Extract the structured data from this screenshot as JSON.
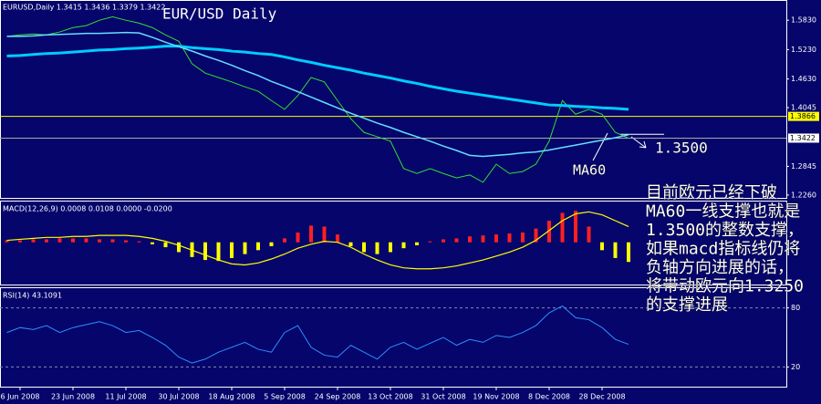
{
  "chart_data": [
    {
      "type": "line",
      "title": "EUR/USD Daily",
      "subtitle": "EURUSD,Daily  1.3415 1.3436 1.3379 1.3422",
      "categories": [
        null,
        "6 Jun 2008",
        null,
        null,
        null,
        "23 Jun 2008",
        null,
        null,
        null,
        "11 Jul 2008",
        null,
        null,
        null,
        "30 Jul 2008",
        null,
        null,
        null,
        "18 Aug 2008",
        null,
        null,
        null,
        "5 Sep 2008",
        null,
        null,
        null,
        "24 Sep 2008",
        null,
        null,
        null,
        "13 Oct 2008",
        null,
        null,
        null,
        "31 Oct 2008",
        null,
        null,
        null,
        "19 Nov 2008",
        null,
        null,
        null,
        "8 Dec 2008",
        null,
        null,
        null,
        "28 Dec 2008",
        null,
        null
      ],
      "series": [
        {
          "color": "#33dd33",
          "values": [
            1.55,
            1.553,
            1.555,
            1.553,
            1.559,
            1.568,
            1.572,
            1.583,
            1.59,
            1.583,
            1.577,
            1.568,
            1.553,
            1.54,
            1.494,
            1.475,
            1.466,
            1.457,
            1.447,
            1.438,
            1.419,
            1.401,
            1.429,
            1.466,
            1.457,
            1.419,
            1.382,
            1.354,
            1.345,
            1.336,
            1.28,
            1.27,
            1.28,
            1.27,
            1.261,
            1.267,
            1.252,
            1.289,
            1.27,
            1.274,
            1.289,
            1.336,
            1.419,
            1.391,
            1.401,
            1.391,
            1.354,
            1.342
          ]
        },
        {
          "color": "#00ccff",
          "width": 3,
          "values": [
            1.51,
            1.511,
            1.513,
            1.515,
            1.516,
            1.518,
            1.52,
            1.522,
            1.523,
            1.525,
            1.526,
            1.528,
            1.53,
            1.53,
            1.527,
            1.525,
            1.523,
            1.52,
            1.518,
            1.515,
            1.513,
            1.508,
            1.502,
            1.497,
            1.491,
            1.486,
            1.481,
            1.475,
            1.47,
            1.465,
            1.459,
            1.454,
            1.448,
            1.443,
            1.438,
            1.434,
            1.43,
            1.426,
            1.422,
            1.418,
            1.414,
            1.41,
            1.409,
            1.407,
            1.406,
            1.404,
            1.403,
            1.401
          ]
        },
        {
          "color": "#66ddff",
          "width": 1.5,
          "values": [
            1.55,
            1.55,
            1.551,
            1.553,
            1.554,
            1.555,
            1.556,
            1.556,
            1.557,
            1.558,
            1.557,
            1.548,
            1.538,
            1.529,
            1.52,
            1.51,
            1.501,
            1.491,
            1.48,
            1.47,
            1.458,
            1.448,
            1.437,
            1.426,
            1.415,
            1.404,
            1.393,
            1.383,
            1.373,
            1.364,
            1.354,
            1.345,
            1.336,
            1.326,
            1.317,
            1.307,
            1.305,
            1.307,
            1.309,
            1.312,
            1.314,
            1.318,
            1.323,
            1.328,
            1.333,
            1.338,
            1.343,
            1.349
          ]
        }
      ],
      "ylim": [
        1.222,
        1.615
      ],
      "yticks": [
        {
          "value": 1.583,
          "label": "1.5830"
        },
        {
          "value": 1.523,
          "label": "1.5230"
        },
        {
          "value": 1.463,
          "label": "1.4630"
        },
        {
          "value": 1.4045,
          "label": "1.4045"
        },
        {
          "value": 1.3866,
          "label": "1.3866",
          "highlight": "#ffff00"
        },
        {
          "value": 1.3422,
          "label": "1.3422",
          "highlight": "#ffffff"
        },
        {
          "value": 1.2845,
          "label": "1.2845"
        },
        {
          "value": 1.226,
          "label": "1.2260"
        }
      ],
      "annotations": [
        {
          "text": "1.3500",
          "value": 1.35
        },
        {
          "text": "MA60"
        }
      ]
    },
    {
      "type": "bar",
      "title": "MACD(12,26,9) 0.0008 0.0108 0.0000 -0.0200",
      "colors": [
        "#ff2020",
        "#ffff00"
      ],
      "values": [
        0.002,
        0.002,
        0.003,
        0.003,
        0.004,
        0.004,
        0.004,
        0.003,
        0.003,
        0.002,
        0.001,
        -0.002,
        -0.005,
        -0.01,
        -0.015,
        -0.018,
        -0.019,
        -0.016,
        -0.012,
        -0.008,
        -0.004,
        0.004,
        0.01,
        0.017,
        0.016,
        0.008,
        -0.004,
        -0.01,
        -0.012,
        -0.01,
        -0.006,
        -0.003,
        0.001,
        0.003,
        0.004,
        0.006,
        0.007,
        0.008,
        0.009,
        0.01,
        0.014,
        0.022,
        0.03,
        0.032,
        0.016,
        -0.008,
        -0.016,
        -0.02
      ],
      "series": [
        {
          "color": "#ffff00",
          "values": [
            0.002,
            0.003,
            0.004,
            0.005,
            0.005,
            0.006,
            0.006,
            0.007,
            0.007,
            0.007,
            0.006,
            0.004,
            0.001,
            -0.003,
            -0.008,
            -0.013,
            -0.018,
            -0.022,
            -0.023,
            -0.021,
            -0.017,
            -0.012,
            -0.006,
            -0.002,
            0.001,
            0.0,
            -0.005,
            -0.012,
            -0.018,
            -0.023,
            -0.026,
            -0.027,
            -0.027,
            -0.026,
            -0.024,
            -0.021,
            -0.018,
            -0.014,
            -0.01,
            -0.005,
            0.002,
            0.012,
            0.022,
            0.029,
            0.031,
            0.028,
            0.022,
            0.016
          ]
        }
      ],
      "ylim": [
        -0.043,
        0.0415
      ]
    },
    {
      "type": "line",
      "title": "RSI(14) 43.1091",
      "series": [
        {
          "color": "#2e8fff",
          "width": 1,
          "values": [
            55,
            60,
            58,
            62,
            55,
            60,
            63,
            66,
            62,
            55,
            57,
            50,
            42,
            30,
            24,
            28,
            35,
            40,
            45,
            38,
            35,
            55,
            62,
            40,
            32,
            30,
            42,
            35,
            28,
            40,
            45,
            38,
            44,
            50,
            42,
            48,
            45,
            52,
            50,
            55,
            62,
            75,
            82,
            70,
            68,
            60,
            48,
            43
          ]
        }
      ],
      "ylim": [
        0,
        100
      ],
      "yticks": [
        80,
        20
      ]
    }
  ],
  "commentary": [
    "目前欧元已经下破",
    "MA60一线支撑也就是",
    "1.3500的整数支撑，",
    "如果macd指标线仍将",
    "负轴方向进展的话，",
    "将带动欧元向1.3250",
    "的支撑进展"
  ]
}
